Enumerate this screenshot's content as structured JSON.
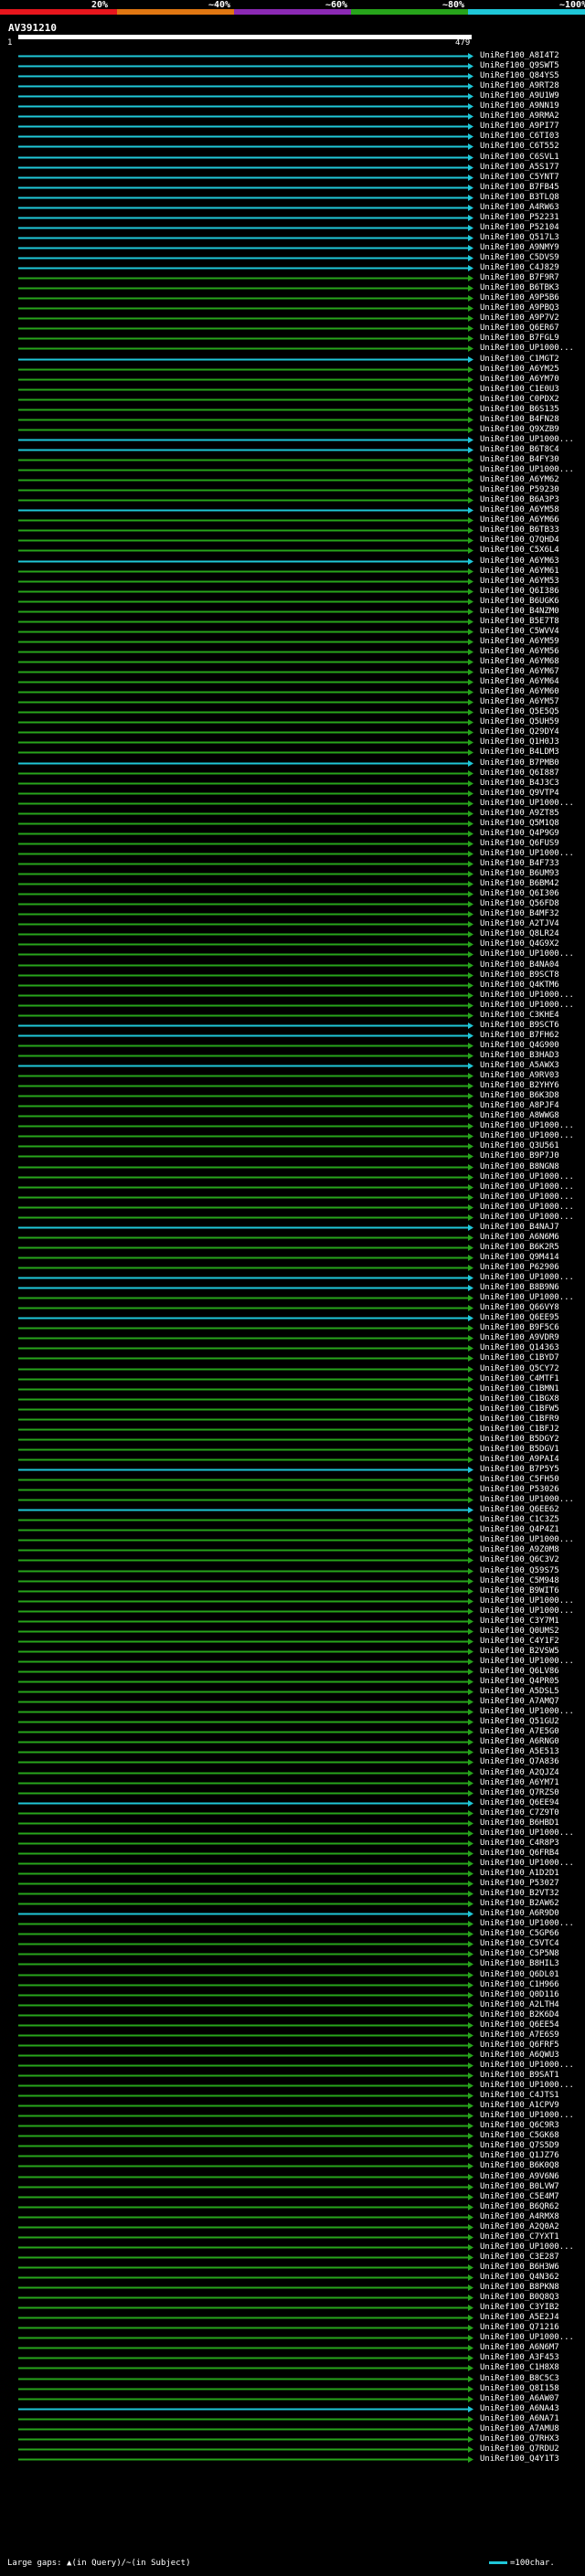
{
  "legend": [
    {
      "label": "20%",
      "color": "#e8161d"
    },
    {
      "label": "~40%",
      "color": "#e07712"
    },
    {
      "label": "~60%",
      "color": "#8b29b4"
    },
    {
      "label": "~80%",
      "color": "#27a41b"
    },
    {
      "label": "~100%",
      "color": "#1fc7d8"
    }
  ],
  "query": {
    "name": "AV391210",
    "length_start": "1",
    "length_end": "479"
  },
  "hits": [
    {
      "id": "UniRef100_A8I4T2",
      "color": "#1fc7d8"
    },
    {
      "id": "UniRef100_Q9SWT5",
      "color": "#1fc7d8"
    },
    {
      "id": "UniRef100_Q84YS5",
      "color": "#1fc7d8"
    },
    {
      "id": "UniRef100_A9RT28",
      "color": "#1fc7d8"
    },
    {
      "id": "UniRef100_A9U1W9",
      "color": "#1fc7d8"
    },
    {
      "id": "UniRef100_A9NN19",
      "color": "#1fc7d8"
    },
    {
      "id": "UniRef100_A9RMA2",
      "color": "#1fc7d8"
    },
    {
      "id": "UniRef100_A9PI77",
      "color": "#1fc7d8"
    },
    {
      "id": "UniRef100_C6TI03",
      "color": "#1fc7d8"
    },
    {
      "id": "UniRef100_C6T552",
      "color": "#1fc7d8"
    },
    {
      "id": "UniRef100_C6SVL1",
      "color": "#1fc7d8"
    },
    {
      "id": "UniRef100_A5S177",
      "color": "#1fc7d8"
    },
    {
      "id": "UniRef100_C5YNT7",
      "color": "#1fc7d8"
    },
    {
      "id": "UniRef100_B7FB45",
      "color": "#1fc7d8"
    },
    {
      "id": "UniRef100_B3TLQ8",
      "color": "#1fc7d8"
    },
    {
      "id": "UniRef100_A4RW63",
      "color": "#1fc7d8"
    },
    {
      "id": "UniRef100_P52231",
      "color": "#1fc7d8"
    },
    {
      "id": "UniRef100_P52104",
      "color": "#1fc7d8"
    },
    {
      "id": "UniRef100_Q517L3",
      "color": "#1fc7d8"
    },
    {
      "id": "UniRef100_A9NMY9",
      "color": "#1fc7d8"
    },
    {
      "id": "UniRef100_C5DVS9",
      "color": "#1fc7d8"
    },
    {
      "id": "UniRef100_C4J829",
      "color": "#1fc7d8"
    },
    {
      "id": "UniRef100_B7F9R7",
      "color": "#27a41b"
    },
    {
      "id": "UniRef100_B6TBK3",
      "color": "#27a41b"
    },
    {
      "id": "UniRef100_A9P5B6",
      "color": "#27a41b"
    },
    {
      "id": "UniRef100_A9PBQ3",
      "color": "#27a41b"
    },
    {
      "id": "UniRef100_A9P7V2",
      "color": "#27a41b"
    },
    {
      "id": "UniRef100_Q6ER67",
      "color": "#27a41b"
    },
    {
      "id": "UniRef100_B7FGL9",
      "color": "#27a41b"
    },
    {
      "id": "UniRef100_UP1000...",
      "color": "#27a41b"
    },
    {
      "id": "UniRef100_C1MGT2",
      "color": "#1fc7d8"
    },
    {
      "id": "UniRef100_A6YM25",
      "color": "#27a41b"
    },
    {
      "id": "UniRef100_A6YM70",
      "color": "#27a41b"
    },
    {
      "id": "UniRef100_C1E0U3",
      "color": "#27a41b"
    },
    {
      "id": "UniRef100_C0PDX2",
      "color": "#27a41b"
    },
    {
      "id": "UniRef100_B6S135",
      "color": "#27a41b"
    },
    {
      "id": "UniRef100_B4FN28",
      "color": "#27a41b"
    },
    {
      "id": "UniRef100_Q9XZB9",
      "color": "#27a41b"
    },
    {
      "id": "UniRef100_UP1000...",
      "color": "#1fc7d8"
    },
    {
      "id": "UniRef100_B6T8C4",
      "color": "#1fc7d8"
    },
    {
      "id": "UniRef100_B4FY30",
      "color": "#27a41b"
    },
    {
      "id": "UniRef100_UP1000...",
      "color": "#27a41b"
    },
    {
      "id": "UniRef100_A6YM62",
      "color": "#27a41b"
    },
    {
      "id": "UniRef100_P59230",
      "color": "#27a41b"
    },
    {
      "id": "UniRef100_B6A3P3",
      "color": "#27a41b"
    },
    {
      "id": "UniRef100_A6YM58",
      "color": "#1fc7d8"
    },
    {
      "id": "UniRef100_A6YM66",
      "color": "#27a41b"
    },
    {
      "id": "UniRef100_B6TB33",
      "color": "#27a41b"
    },
    {
      "id": "UniRef100_Q7QHD4",
      "color": "#27a41b"
    },
    {
      "id": "UniRef100_C5X6L4",
      "color": "#27a41b"
    },
    {
      "id": "UniRef100_A6YM63",
      "color": "#1fc7d8"
    },
    {
      "id": "UniRef100_A6YM61",
      "color": "#27a41b"
    },
    {
      "id": "UniRef100_A6YM53",
      "color": "#27a41b"
    },
    {
      "id": "UniRef100_Q6I386",
      "color": "#27a41b"
    },
    {
      "id": "UniRef100_B6UGK6",
      "color": "#27a41b"
    },
    {
      "id": "UniRef100_B4NZM0",
      "color": "#27a41b"
    },
    {
      "id": "UniRef100_B5E7T8",
      "color": "#27a41b"
    },
    {
      "id": "UniRef100_C5WVV4",
      "color": "#27a41b"
    },
    {
      "id": "UniRef100_A6YM59",
      "color": "#27a41b"
    },
    {
      "id": "UniRef100_A6YM56",
      "color": "#27a41b"
    },
    {
      "id": "UniRef100_A6YM68",
      "color": "#27a41b"
    },
    {
      "id": "UniRef100_A6YM67",
      "color": "#27a41b"
    },
    {
      "id": "UniRef100_A6YM64",
      "color": "#27a41b"
    },
    {
      "id": "UniRef100_A6YM60",
      "color": "#27a41b"
    },
    {
      "id": "UniRef100_A6YM57",
      "color": "#27a41b"
    },
    {
      "id": "UniRef100_Q5E5Q5",
      "color": "#27a41b"
    },
    {
      "id": "UniRef100_Q5UH59",
      "color": "#27a41b"
    },
    {
      "id": "UniRef100_Q29DY4",
      "color": "#27a41b"
    },
    {
      "id": "UniRef100_Q1H0J3",
      "color": "#27a41b"
    },
    {
      "id": "UniRef100_B4LDM3",
      "color": "#27a41b"
    },
    {
      "id": "UniRef100_B7PMB0",
      "color": "#1fc7d8"
    },
    {
      "id": "UniRef100_Q6I887",
      "color": "#27a41b"
    },
    {
      "id": "UniRef100_B4J3C3",
      "color": "#27a41b"
    },
    {
      "id": "UniRef100_Q9VTP4",
      "color": "#27a41b"
    },
    {
      "id": "UniRef100_UP1000...",
      "color": "#27a41b"
    },
    {
      "id": "UniRef100_A9ZT85",
      "color": "#27a41b"
    },
    {
      "id": "UniRef100_Q5M1Q8",
      "color": "#27a41b"
    },
    {
      "id": "UniRef100_Q4P9G9",
      "color": "#27a41b"
    },
    {
      "id": "UniRef100_Q6FUS9",
      "color": "#27a41b"
    },
    {
      "id": "UniRef100_UP1000...",
      "color": "#27a41b"
    },
    {
      "id": "UniRef100_B4F733",
      "color": "#27a41b"
    },
    {
      "id": "UniRef100_B6UM93",
      "color": "#27a41b"
    },
    {
      "id": "UniRef100_B6BM42",
      "color": "#27a41b"
    },
    {
      "id": "UniRef100_Q6I306",
      "color": "#27a41b"
    },
    {
      "id": "UniRef100_Q56FD8",
      "color": "#27a41b"
    },
    {
      "id": "UniRef100_B4MF32",
      "color": "#27a41b"
    },
    {
      "id": "UniRef100_A2TJV4",
      "color": "#27a41b"
    },
    {
      "id": "UniRef100_Q8LR24",
      "color": "#27a41b"
    },
    {
      "id": "UniRef100_Q4G9X2",
      "color": "#27a41b"
    },
    {
      "id": "UniRef100_UP1000...",
      "color": "#27a41b"
    },
    {
      "id": "UniRef100_B4NA04",
      "color": "#27a41b"
    },
    {
      "id": "UniRef100_B9SCT8",
      "color": "#27a41b"
    },
    {
      "id": "UniRef100_Q4KTM6",
      "color": "#27a41b"
    },
    {
      "id": "UniRef100_UP1000...",
      "color": "#27a41b"
    },
    {
      "id": "UniRef100_UP1000...",
      "color": "#27a41b"
    },
    {
      "id": "UniRef100_C3KHE4",
      "color": "#27a41b"
    },
    {
      "id": "UniRef100_B9SCT6",
      "color": "#1fc7d8"
    },
    {
      "id": "UniRef100_B7FH62",
      "color": "#1fc7d8"
    },
    {
      "id": "UniRef100_Q4G900",
      "color": "#27a41b"
    },
    {
      "id": "UniRef100_B3HAD3",
      "color": "#27a41b"
    },
    {
      "id": "UniRef100_A5AWX3",
      "color": "#1fc7d8"
    },
    {
      "id": "UniRef100_A9RV03",
      "color": "#27a41b"
    },
    {
      "id": "UniRef100_B2YHY6",
      "color": "#27a41b"
    },
    {
      "id": "UniRef100_B6K3D8",
      "color": "#27a41b"
    },
    {
      "id": "UniRef100_A8PJF4",
      "color": "#27a41b"
    },
    {
      "id": "UniRef100_A8WWG8",
      "color": "#27a41b"
    },
    {
      "id": "UniRef100_UP1000...",
      "color": "#27a41b"
    },
    {
      "id": "UniRef100_UP1000...",
      "color": "#27a41b"
    },
    {
      "id": "UniRef100_Q3U561",
      "color": "#27a41b"
    },
    {
      "id": "UniRef100_B9P7J0",
      "color": "#27a41b"
    },
    {
      "id": "UniRef100_B8NGN8",
      "color": "#27a41b"
    },
    {
      "id": "UniRef100_UP1000...",
      "color": "#27a41b"
    },
    {
      "id": "UniRef100_UP1000...",
      "color": "#27a41b"
    },
    {
      "id": "UniRef100_UP1000...",
      "color": "#27a41b"
    },
    {
      "id": "UniRef100_UP1000...",
      "color": "#27a41b"
    },
    {
      "id": "UniRef100_UP1000...",
      "color": "#27a41b"
    },
    {
      "id": "UniRef100_B4NAJ7",
      "color": "#1fc7d8"
    },
    {
      "id": "UniRef100_A6N6M6",
      "color": "#27a41b"
    },
    {
      "id": "UniRef100_B6K2R5",
      "color": "#27a41b"
    },
    {
      "id": "UniRef100_Q9M414",
      "color": "#27a41b"
    },
    {
      "id": "UniRef100_P62906",
      "color": "#27a41b"
    },
    {
      "id": "UniRef100_UP1000...",
      "color": "#1fc7d8"
    },
    {
      "id": "UniRef100_B8B9N6",
      "color": "#1fc7d8"
    },
    {
      "id": "UniRef100_UP1000...",
      "color": "#27a41b"
    },
    {
      "id": "UniRef100_Q66VY8",
      "color": "#27a41b"
    },
    {
      "id": "UniRef100_Q6EE95",
      "color": "#1fc7d8"
    },
    {
      "id": "UniRef100_B9F5C6",
      "color": "#27a41b"
    },
    {
      "id": "UniRef100_A9VDR9",
      "color": "#27a41b"
    },
    {
      "id": "UniRef100_Q14363",
      "color": "#27a41b"
    },
    {
      "id": "UniRef100_C1BYD7",
      "color": "#27a41b"
    },
    {
      "id": "UniRef100_Q5CY72",
      "color": "#27a41b"
    },
    {
      "id": "UniRef100_C4MTF1",
      "color": "#27a41b"
    },
    {
      "id": "UniRef100_C1BMN1",
      "color": "#27a41b"
    },
    {
      "id": "UniRef100_C1BGX8",
      "color": "#27a41b"
    },
    {
      "id": "UniRef100_C1BFW5",
      "color": "#27a41b"
    },
    {
      "id": "UniRef100_C1BFR9",
      "color": "#27a41b"
    },
    {
      "id": "UniRef100_C1BFJ2",
      "color": "#27a41b"
    },
    {
      "id": "UniRef100_B5DGY2",
      "color": "#27a41b"
    },
    {
      "id": "UniRef100_B5DGV1",
      "color": "#27a41b"
    },
    {
      "id": "UniRef100_A9PAI4",
      "color": "#27a41b"
    },
    {
      "id": "UniRef100_B7P5Y5",
      "color": "#1fc7d8"
    },
    {
      "id": "UniRef100_C5FH50",
      "color": "#27a41b"
    },
    {
      "id": "UniRef100_P53026",
      "color": "#27a41b"
    },
    {
      "id": "UniRef100_UP1000...",
      "color": "#27a41b"
    },
    {
      "id": "UniRef100_Q6EE62",
      "color": "#1fc7d8"
    },
    {
      "id": "UniRef100_C1C3Z5",
      "color": "#27a41b"
    },
    {
      "id": "UniRef100_Q4P4Z1",
      "color": "#27a41b"
    },
    {
      "id": "UniRef100_UP1000...",
      "color": "#27a41b"
    },
    {
      "id": "UniRef100_A9Z0M8",
      "color": "#27a41b"
    },
    {
      "id": "UniRef100_Q6C3V2",
      "color": "#27a41b"
    },
    {
      "id": "UniRef100_Q59S75",
      "color": "#27a41b"
    },
    {
      "id": "UniRef100_C5M948",
      "color": "#27a41b"
    },
    {
      "id": "UniRef100_B9WIT6",
      "color": "#27a41b"
    },
    {
      "id": "UniRef100_UP1000...",
      "color": "#27a41b"
    },
    {
      "id": "UniRef100_UP1000...",
      "color": "#27a41b"
    },
    {
      "id": "UniRef100_C3Y7M1",
      "color": "#27a41b"
    },
    {
      "id": "UniRef100_Q0UMS2",
      "color": "#27a41b"
    },
    {
      "id": "UniRef100_C4Y1F2",
      "color": "#27a41b"
    },
    {
      "id": "UniRef100_B2VSW5",
      "color": "#27a41b"
    },
    {
      "id": "UniRef100_UP1000...",
      "color": "#27a41b"
    },
    {
      "id": "UniRef100_Q6LV86",
      "color": "#27a41b"
    },
    {
      "id": "UniRef100_Q4PR05",
      "color": "#27a41b"
    },
    {
      "id": "UniRef100_A5DSL5",
      "color": "#27a41b"
    },
    {
      "id": "UniRef100_A7AMQ7",
      "color": "#27a41b"
    },
    {
      "id": "UniRef100_UP1000...",
      "color": "#27a41b"
    },
    {
      "id": "UniRef100_Q51GU2",
      "color": "#27a41b"
    },
    {
      "id": "UniRef100_A7E5G0",
      "color": "#27a41b"
    },
    {
      "id": "UniRef100_A6RNG0",
      "color": "#27a41b"
    },
    {
      "id": "UniRef100_A5E513",
      "color": "#27a41b"
    },
    {
      "id": "UniRef100_Q7A836",
      "color": "#27a41b"
    },
    {
      "id": "UniRef100_A2QJZ4",
      "color": "#27a41b"
    },
    {
      "id": "UniRef100_A6YM71",
      "color": "#27a41b"
    },
    {
      "id": "UniRef100_Q7RZS0",
      "color": "#27a41b"
    },
    {
      "id": "UniRef100_Q6EE94",
      "color": "#1fc7d8"
    },
    {
      "id": "UniRef100_C7Z9T0",
      "color": "#27a41b"
    },
    {
      "id": "UniRef100_B6HBD1",
      "color": "#27a41b"
    },
    {
      "id": "UniRef100_UP1000...",
      "color": "#27a41b"
    },
    {
      "id": "UniRef100_C4R8P3",
      "color": "#27a41b"
    },
    {
      "id": "UniRef100_Q6FRB4",
      "color": "#27a41b"
    },
    {
      "id": "UniRef100_UP1000...",
      "color": "#27a41b"
    },
    {
      "id": "UniRef100_A1D2D1",
      "color": "#27a41b"
    },
    {
      "id": "UniRef100_P53027",
      "color": "#27a41b"
    },
    {
      "id": "UniRef100_B2VT32",
      "color": "#27a41b"
    },
    {
      "id": "UniRef100_B2AW62",
      "color": "#27a41b"
    },
    {
      "id": "UniRef100_A6R9D0",
      "color": "#1fc7d8"
    },
    {
      "id": "UniRef100_UP1000...",
      "color": "#27a41b"
    },
    {
      "id": "UniRef100_C5GP66",
      "color": "#27a41b"
    },
    {
      "id": "UniRef100_C5VTC4",
      "color": "#27a41b"
    },
    {
      "id": "UniRef100_C5P5N8",
      "color": "#27a41b"
    },
    {
      "id": "UniRef100_B8HIL3",
      "color": "#27a41b"
    },
    {
      "id": "UniRef100_Q6DL01",
      "color": "#27a41b"
    },
    {
      "id": "UniRef100_C1H966",
      "color": "#27a41b"
    },
    {
      "id": "UniRef100_Q0D116",
      "color": "#27a41b"
    },
    {
      "id": "UniRef100_A2LTH4",
      "color": "#27a41b"
    },
    {
      "id": "UniRef100_B2K6D4",
      "color": "#27a41b"
    },
    {
      "id": "UniRef100_Q6EE54",
      "color": "#27a41b"
    },
    {
      "id": "UniRef100_A7E6S9",
      "color": "#27a41b"
    },
    {
      "id": "UniRef100_Q6FRF5",
      "color": "#27a41b"
    },
    {
      "id": "UniRef100_A6QWU3",
      "color": "#27a41b"
    },
    {
      "id": "UniRef100_UP1000...",
      "color": "#27a41b"
    },
    {
      "id": "UniRef100_B9SAT1",
      "color": "#27a41b"
    },
    {
      "id": "UniRef100_UP1000...",
      "color": "#27a41b"
    },
    {
      "id": "UniRef100_C4JTS1",
      "color": "#27a41b"
    },
    {
      "id": "UniRef100_A1CPV9",
      "color": "#27a41b"
    },
    {
      "id": "UniRef100_UP1000...",
      "color": "#27a41b"
    },
    {
      "id": "UniRef100_Q6C9R3",
      "color": "#27a41b"
    },
    {
      "id": "UniRef100_C5GK68",
      "color": "#27a41b"
    },
    {
      "id": "UniRef100_Q7S5D9",
      "color": "#27a41b"
    },
    {
      "id": "UniRef100_Q1JZ76",
      "color": "#27a41b"
    },
    {
      "id": "UniRef100_B6K0Q8",
      "color": "#27a41b"
    },
    {
      "id": "UniRef100_A9V6N6",
      "color": "#27a41b"
    },
    {
      "id": "UniRef100_B0LVW7",
      "color": "#27a41b"
    },
    {
      "id": "UniRef100_C5E4M7",
      "color": "#27a41b"
    },
    {
      "id": "UniRef100_B6QR62",
      "color": "#27a41b"
    },
    {
      "id": "UniRef100_A4RMX8",
      "color": "#27a41b"
    },
    {
      "id": "UniRef100_A2Q0A2",
      "color": "#27a41b"
    },
    {
      "id": "UniRef100_C7YXT1",
      "color": "#27a41b"
    },
    {
      "id": "UniRef100_UP1000...",
      "color": "#27a41b"
    },
    {
      "id": "UniRef100_C3E287",
      "color": "#27a41b"
    },
    {
      "id": "UniRef100_B6H3W6",
      "color": "#27a41b"
    },
    {
      "id": "UniRef100_Q4N362",
      "color": "#27a41b"
    },
    {
      "id": "UniRef100_B8PKN8",
      "color": "#27a41b"
    },
    {
      "id": "UniRef100_B0Q8Q3",
      "color": "#27a41b"
    },
    {
      "id": "UniRef100_C3YIB2",
      "color": "#27a41b"
    },
    {
      "id": "UniRef100_A5E2J4",
      "color": "#27a41b"
    },
    {
      "id": "UniRef100_Q71216",
      "color": "#27a41b"
    },
    {
      "id": "UniRef100_UP1000...",
      "color": "#27a41b"
    },
    {
      "id": "UniRef100_A6N6M7",
      "color": "#27a41b"
    },
    {
      "id": "UniRef100_A3F453",
      "color": "#27a41b"
    },
    {
      "id": "UniRef100_C1H8X8",
      "color": "#27a41b"
    },
    {
      "id": "UniRef100_B8C5C3",
      "color": "#27a41b"
    },
    {
      "id": "UniRef100_Q8I158",
      "color": "#27a41b"
    },
    {
      "id": "UniRef100_A6AW07",
      "color": "#27a41b"
    },
    {
      "id": "UniRef100_A6NA43",
      "color": "#1fc7d8"
    },
    {
      "id": "UniRef100_A6NA71",
      "color": "#27a41b"
    },
    {
      "id": "UniRef100_A7AMU8",
      "color": "#27a41b"
    },
    {
      "id": "UniRef100_Q7RHX3",
      "color": "#27a41b"
    },
    {
      "id": "UniRef100_Q7RDU2",
      "color": "#27a41b"
    },
    {
      "id": "UniRef100_Q4Y1T3",
      "color": "#27a41b"
    }
  ],
  "footer": {
    "text": "Large gaps: ▲(in Query)/~(in Subject)",
    "scale": "=100char."
  }
}
